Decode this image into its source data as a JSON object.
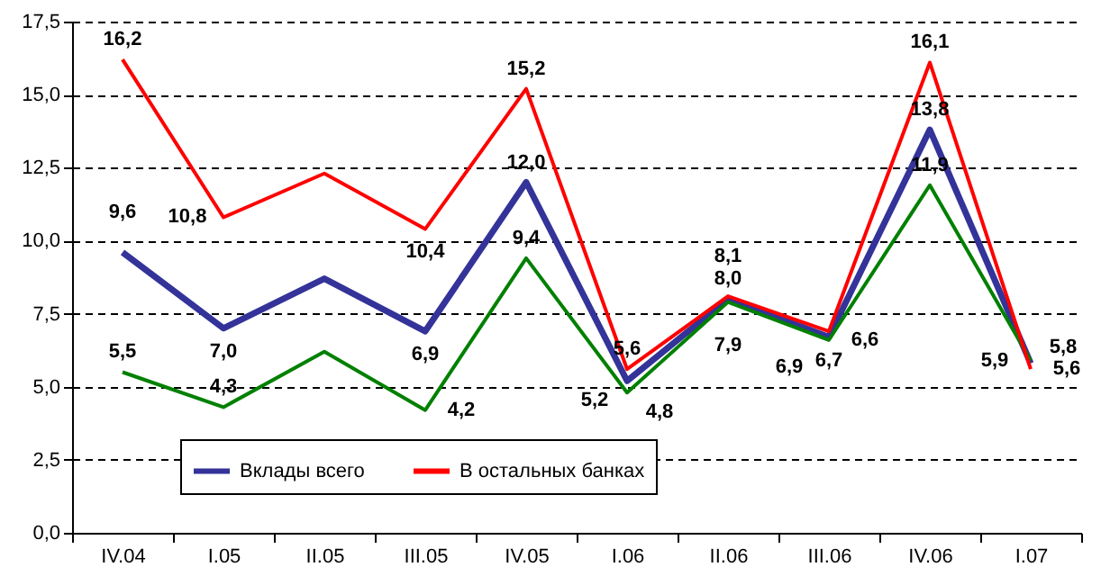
{
  "chart_data": {
    "type": "line",
    "categories": [
      "IV.04",
      "I.05",
      "II.05",
      "III.05",
      "IV.05",
      "I.06",
      "II.06",
      "III.06",
      "IV.06",
      "I.07"
    ],
    "series": [
      {
        "name": "Вклады всего",
        "color": "#333399",
        "values": [
          9.6,
          7.0,
          8.7,
          6.9,
          12.0,
          5.2,
          8.0,
          6.7,
          13.8,
          5.8
        ],
        "value_labels": [
          "9,6",
          "7,0",
          null,
          "6,9",
          "12,0",
          "5,2",
          "8,0",
          "6,7",
          "13,8",
          "5,8"
        ]
      },
      {
        "color": "#008000",
        "values": [
          5.5,
          4.3,
          6.2,
          4.2,
          9.4,
          4.8,
          7.9,
          6.6,
          11.9,
          5.9
        ],
        "value_labels": [
          "5,5",
          "4,3",
          null,
          "4,2",
          "9,4",
          "4,8",
          "7,9",
          "6,6",
          "11,9",
          "5,9"
        ]
      },
      {
        "name": "В остальных банках",
        "color": "#ff0000",
        "values": [
          16.2,
          10.8,
          12.3,
          10.4,
          15.2,
          5.6,
          8.1,
          6.9,
          16.1,
          5.6
        ],
        "value_labels": [
          "16,2",
          "10,8",
          null,
          "10,4",
          "15,2",
          "5,6",
          "8,1",
          "6,9",
          "16,1",
          "5,6"
        ]
      }
    ],
    "ylim": [
      0,
      17.5
    ],
    "yticks": [
      {
        "value": 0,
        "label": "0,0"
      },
      {
        "value": 2.5,
        "label": "2,5"
      },
      {
        "value": 5,
        "label": "5,0"
      },
      {
        "value": 7.5,
        "label": "7,5"
      },
      {
        "value": 10,
        "label": "10,0"
      },
      {
        "value": 12.5,
        "label": "12,5"
      },
      {
        "value": 15,
        "label": "15,0"
      },
      {
        "value": 17.5,
        "label": "17,5"
      }
    ],
    "grid": "y",
    "legend": "bottom",
    "marker": "none",
    "line_style": "solid"
  }
}
